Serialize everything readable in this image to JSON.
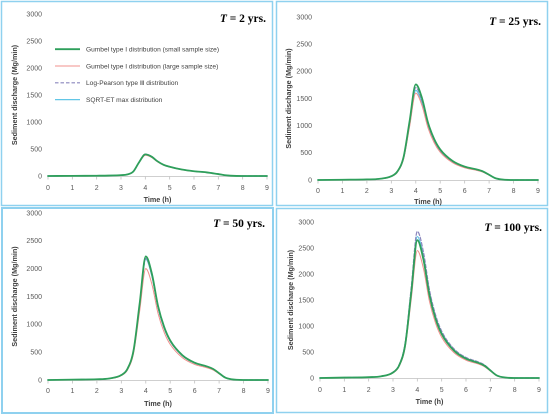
{
  "figure": {
    "panel_border_color": "#8fd1ef",
    "axis_color": "#bfbfbf"
  },
  "chart_data": [
    {
      "type": "line",
      "title": "T = 2 yrs.",
      "xlabel": "Time (h)",
      "ylabel": "Sediment discharge (Mg/min)",
      "xlim": [
        0,
        9
      ],
      "ylim": [
        0,
        3000
      ],
      "xticks": [
        0,
        1,
        2,
        3,
        4,
        5,
        6,
        7,
        8,
        9
      ],
      "yticks": [
        0,
        500,
        1000,
        1500,
        2000,
        2500,
        3000
      ],
      "grid": false,
      "legend": "top-left",
      "x": [
        0,
        1,
        2,
        2.5,
        3,
        3.25,
        3.5,
        3.75,
        4,
        4.25,
        4.5,
        4.75,
        5,
        5.5,
        6,
        6.5,
        6.75,
        7,
        7.25,
        7.5,
        8,
        9
      ],
      "series": [
        {
          "name": "Gumbel type I distribution (small sample size)",
          "color": "#2e9f5b",
          "style": "solid",
          "values": [
            0,
            2,
            5,
            8,
            16,
            28,
            80,
            260,
            400,
            360,
            272,
            208,
            172,
            120,
            88,
            68,
            52,
            36,
            16,
            6,
            0,
            0
          ]
        },
        {
          "name": "Gumbel type I distribution (large sample size)",
          "color": "#f0908c",
          "style": "solid",
          "values": [
            0,
            2,
            5,
            8,
            15,
            27,
            77,
            250,
            385,
            347,
            262,
            200,
            166,
            116,
            85,
            65,
            50,
            35,
            15,
            6,
            0,
            0
          ]
        },
        {
          "name": "Log-Pearson type Ⅲ distribution",
          "color": "#8a86bd",
          "style": "dashed",
          "values": [
            0,
            2,
            5,
            8,
            16,
            28,
            81,
            263,
            405,
            365,
            275,
            211,
            174,
            122,
            89,
            69,
            53,
            36,
            16,
            6,
            0,
            0
          ]
        },
        {
          "name": "SQRT-ET max distribution",
          "color": "#62c6e6",
          "style": "solid",
          "values": [
            0,
            2,
            5,
            8,
            16,
            28,
            79,
            257,
            395,
            356,
            269,
            205,
            170,
            119,
            87,
            67,
            51,
            36,
            16,
            6,
            0,
            0
          ]
        }
      ]
    },
    {
      "type": "line",
      "title": "T = 25 yrs.",
      "xlabel": "Time (h)",
      "ylabel": "Sediment discharge (Mg/min)",
      "xlim": [
        0,
        9
      ],
      "ylim": [
        0,
        3000
      ],
      "xticks": [
        0,
        1,
        2,
        3,
        4,
        5,
        6,
        7,
        8,
        9
      ],
      "yticks": [
        0,
        500,
        1000,
        1500,
        2000,
        2500,
        3000
      ],
      "grid": false,
      "x": [
        0,
        1,
        2,
        2.5,
        3,
        3.25,
        3.5,
        3.75,
        4,
        4.25,
        4.5,
        4.75,
        5,
        5.5,
        6,
        6.5,
        6.75,
        7,
        7.25,
        7.5,
        8,
        9
      ],
      "series": [
        {
          "color": "#2e9f5b",
          "style": "solid",
          "values": [
            0,
            5,
            11,
            21,
            70,
            158,
            422,
            1091,
            1760,
            1514,
            1056,
            757,
            563,
            352,
            246,
            194,
            158,
            97,
            35,
            11,
            0,
            0
          ]
        },
        {
          "color": "#f0908c",
          "style": "solid",
          "values": [
            0,
            5,
            10,
            19,
            64,
            144,
            384,
            992,
            1600,
            1376,
            960,
            688,
            512,
            320,
            224,
            176,
            144,
            88,
            32,
            10,
            0,
            0
          ]
        },
        {
          "color": "#8a86bd",
          "style": "dashed",
          "values": [
            0,
            5,
            10,
            20,
            68,
            153,
            408,
            1054,
            1700,
            1462,
            1020,
            731,
            544,
            340,
            238,
            187,
            153,
            94,
            34,
            10,
            0,
            0
          ]
        },
        {
          "color": "#62c6e6",
          "style": "solid",
          "values": [
            0,
            5,
            10,
            20,
            66,
            149,
            396,
            1023,
            1650,
            1419,
            990,
            710,
            528,
            330,
            231,
            182,
            149,
            91,
            33,
            10,
            0,
            0
          ]
        }
      ]
    },
    {
      "type": "line",
      "title": "T = 50 yrs.",
      "xlabel": "Time (h)",
      "ylabel": "Sediment discharge (Mg/min)",
      "xlim": [
        0,
        9
      ],
      "ylim": [
        0,
        3000
      ],
      "xticks": [
        0,
        1,
        2,
        3,
        4,
        5,
        6,
        7,
        8,
        9
      ],
      "yticks": [
        0,
        500,
        1000,
        1500,
        2000,
        2500,
        3000
      ],
      "grid": false,
      "x": [
        0,
        1,
        2,
        2.5,
        3,
        3.25,
        3.5,
        3.75,
        4,
        4.25,
        4.5,
        4.75,
        5,
        5.5,
        6,
        6.5,
        6.75,
        7,
        7.25,
        7.5,
        8,
        9
      ],
      "series": [
        {
          "color": "#2e9f5b",
          "style": "solid",
          "values": [
            0,
            7,
            13,
            27,
            89,
            200,
            533,
            1376,
            2220,
            1909,
            1332,
            955,
            710,
            444,
            311,
            244,
            200,
            122,
            44,
            13,
            0,
            0
          ]
        },
        {
          "color": "#f0908c",
          "style": "solid",
          "values": [
            0,
            6,
            12,
            24,
            80,
            180,
            480,
            1240,
            2000,
            1720,
            1200,
            860,
            640,
            400,
            280,
            220,
            180,
            110,
            40,
            12,
            0,
            0
          ]
        },
        {
          "color": "#8a86bd",
          "style": "dashed",
          "values": [
            0,
            7,
            13,
            26,
            87,
            196,
            523,
            1352,
            2180,
            1875,
            1308,
            937,
            698,
            436,
            305,
            240,
            196,
            120,
            44,
            13,
            0,
            0
          ]
        },
        {
          "color": "#62c6e6",
          "style": "solid",
          "values": [
            0,
            7,
            13,
            26,
            87,
            195,
            521,
            1345,
            2170,
            1866,
            1302,
            933,
            694,
            434,
            304,
            239,
            195,
            119,
            43,
            13,
            0,
            0
          ]
        }
      ]
    },
    {
      "type": "line",
      "title": "T = 100 yrs.",
      "xlabel": "Time (h)",
      "ylabel": "Sediment discharge (Mg/min)",
      "xlim": [
        0,
        9
      ],
      "ylim": [
        0,
        3000
      ],
      "xticks": [
        0,
        1,
        2,
        3,
        4,
        5,
        6,
        7,
        8,
        9
      ],
      "yticks": [
        0,
        500,
        1000,
        1500,
        2000,
        2500,
        3000
      ],
      "grid": false,
      "x": [
        0,
        1,
        2,
        2.5,
        3,
        3.25,
        3.5,
        3.75,
        4,
        4.25,
        4.5,
        4.75,
        5,
        5.5,
        6,
        6.5,
        6.75,
        7,
        7.25,
        7.5,
        8,
        9
      ],
      "series": [
        {
          "color": "#2e9f5b",
          "style": "solid",
          "values": [
            0,
            8,
            16,
            32,
            106,
            239,
            636,
            1643,
            2650,
            2279,
            1590,
            1140,
            848,
            530,
            371,
            292,
            239,
            146,
            53,
            16,
            0,
            0
          ]
        },
        {
          "color": "#f0908c",
          "style": "solid",
          "values": [
            0,
            7,
            15,
            29,
            98,
            221,
            588,
            1519,
            2450,
            2107,
            1470,
            1054,
            784,
            490,
            343,
            270,
            221,
            135,
            49,
            15,
            0,
            0
          ]
        },
        {
          "color": "#8a86bd",
          "style": "dashed",
          "values": [
            0,
            8,
            17,
            34,
            113,
            254,
            677,
            1748,
            2820,
            2425,
            1692,
            1213,
            902,
            564,
            395,
            310,
            254,
            155,
            56,
            17,
            0,
            0
          ]
        },
        {
          "color": "#62c6e6",
          "style": "solid",
          "values": [
            0,
            8,
            16,
            33,
            109,
            245,
            653,
            1686,
            2720,
            2339,
            1632,
            1170,
            870,
            544,
            381,
            299,
            245,
            150,
            54,
            16,
            0,
            0
          ]
        }
      ]
    }
  ]
}
